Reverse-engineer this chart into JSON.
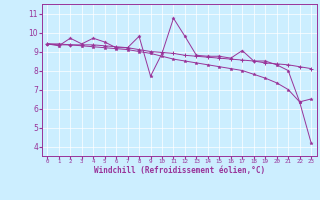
{
  "xlabel": "Windchill (Refroidissement éolien,°C)",
  "bg_color": "#cceeff",
  "line_color": "#993399",
  "x_ticks": [
    0,
    1,
    2,
    3,
    4,
    5,
    6,
    7,
    8,
    9,
    10,
    11,
    12,
    13,
    14,
    15,
    16,
    17,
    18,
    19,
    20,
    21,
    22,
    23
  ],
  "ylim": [
    3.5,
    11.5
  ],
  "xlim": [
    -0.5,
    23.5
  ],
  "yticks": [
    4,
    5,
    6,
    7,
    8,
    9,
    10,
    11
  ],
  "series1_x": [
    0,
    1,
    2,
    3,
    4,
    5,
    6,
    7,
    8,
    9,
    10,
    11,
    12,
    13,
    14,
    15,
    16,
    17,
    18,
    19,
    20,
    21,
    22,
    23
  ],
  "series1_y": [
    9.4,
    9.3,
    9.7,
    9.4,
    9.7,
    9.5,
    9.2,
    9.2,
    9.8,
    7.7,
    8.9,
    10.75,
    9.8,
    8.8,
    8.75,
    8.75,
    8.65,
    9.05,
    8.5,
    8.5,
    8.3,
    8.0,
    6.35,
    6.5
  ],
  "series2_x": [
    0,
    1,
    2,
    3,
    4,
    5,
    6,
    7,
    8,
    9,
    10,
    11,
    12,
    13,
    14,
    15,
    16,
    17,
    18,
    19,
    20,
    21,
    22,
    23
  ],
  "series2_y": [
    9.4,
    9.35,
    9.35,
    9.35,
    9.35,
    9.3,
    9.25,
    9.2,
    9.1,
    9.0,
    8.95,
    8.9,
    8.8,
    8.75,
    8.7,
    8.65,
    8.6,
    8.55,
    8.5,
    8.4,
    8.35,
    8.3,
    8.2,
    8.1
  ],
  "series3_x": [
    0,
    1,
    2,
    3,
    4,
    5,
    6,
    7,
    8,
    9,
    10,
    11,
    12,
    13,
    14,
    15,
    16,
    17,
    18,
    19,
    20,
    21,
    22,
    23
  ],
  "series3_y": [
    9.4,
    9.4,
    9.35,
    9.3,
    9.25,
    9.2,
    9.15,
    9.1,
    9.0,
    8.9,
    8.75,
    8.6,
    8.5,
    8.4,
    8.3,
    8.2,
    8.1,
    8.0,
    7.8,
    7.6,
    7.35,
    7.0,
    6.35,
    4.2
  ]
}
